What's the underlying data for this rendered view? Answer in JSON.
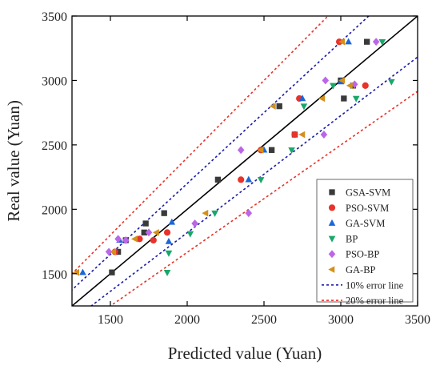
{
  "chart_data": {
    "type": "scatter",
    "title": "",
    "xlabel": "Predicted value (Yuan)",
    "ylabel": "Real value (Yuan)",
    "xlim": [
      1250,
      3500
    ],
    "ylim": [
      1250,
      3500
    ],
    "x_ticks": [
      "1500",
      "2000",
      "2500",
      "3000",
      "3500"
    ],
    "y_ticks": [
      "1500",
      "2000",
      "2500",
      "3000",
      "3500"
    ],
    "grid": false,
    "legend_position": "bottom-right",
    "reference_lines": [
      {
        "name": "",
        "kind": "y=x",
        "color": "#000000",
        "style": "solid"
      },
      {
        "name": "10% error line",
        "kind": "ratio",
        "ratios": [
          1.1,
          0.909
        ],
        "color": "#1a1aa8",
        "style": "dotted"
      },
      {
        "name": "20% error line",
        "kind": "ratio",
        "ratios": [
          1.2,
          0.833
        ],
        "color": "#e8322a",
        "style": "dotted"
      }
    ],
    "series": [
      {
        "name": "GSA-SVM",
        "marker": "square",
        "color": "#3a3a3a",
        "points": [
          [
            1510,
            1510
          ],
          [
            1550,
            1670
          ],
          [
            1600,
            1760
          ],
          [
            1720,
            1820
          ],
          [
            1730,
            1890
          ],
          [
            1850,
            1970
          ],
          [
            2200,
            2230
          ],
          [
            2550,
            2460
          ],
          [
            2600,
            2800
          ],
          [
            3020,
            2860
          ],
          [
            2700,
            2580
          ],
          [
            3000,
            3000
          ],
          [
            3080,
            2960
          ],
          [
            3170,
            3300
          ]
        ]
      },
      {
        "name": "PSO-SVM",
        "marker": "circle",
        "color": "#e8322a",
        "points": [
          [
            1530,
            1670
          ],
          [
            1690,
            1770
          ],
          [
            1780,
            1760
          ],
          [
            1870,
            1820
          ],
          [
            2350,
            2230
          ],
          [
            2480,
            2460
          ],
          [
            2700,
            2580
          ],
          [
            2730,
            2860
          ],
          [
            2990,
            3300
          ],
          [
            3160,
            2960
          ]
        ]
      },
      {
        "name": "GA-SVM",
        "marker": "triangle-up",
        "color": "#1c66d9",
        "points": [
          [
            1320,
            1510
          ],
          [
            1560,
            1760
          ],
          [
            1880,
            1750
          ],
          [
            1900,
            1900
          ],
          [
            2400,
            2230
          ],
          [
            2500,
            2460
          ],
          [
            2750,
            2860
          ],
          [
            3050,
            3300
          ],
          [
            3000,
            2990
          ]
        ]
      },
      {
        "name": "BP",
        "marker": "triangle-down",
        "color": "#17a86a",
        "points": [
          [
            1870,
            1510
          ],
          [
            1880,
            1660
          ],
          [
            2020,
            1810
          ],
          [
            2180,
            1970
          ],
          [
            2480,
            2230
          ],
          [
            2680,
            2460
          ],
          [
            2760,
            2800
          ],
          [
            3100,
            2860
          ],
          [
            3330,
            2990
          ],
          [
            3270,
            3300
          ],
          [
            2950,
            2960
          ]
        ]
      },
      {
        "name": "PSO-BP",
        "marker": "diamond",
        "color": "#bb66e8",
        "points": [
          [
            1490,
            1670
          ],
          [
            1550,
            1770
          ],
          [
            1600,
            1760
          ],
          [
            1750,
            1820
          ],
          [
            2050,
            1890
          ],
          [
            2350,
            2460
          ],
          [
            2400,
            1970
          ],
          [
            2890,
            2580
          ],
          [
            2900,
            3000
          ],
          [
            3230,
            3300
          ],
          [
            3090,
            2970
          ]
        ]
      },
      {
        "name": "GA-BP",
        "marker": "triangle-left",
        "color": "#d4901a",
        "points": [
          [
            1280,
            1510
          ],
          [
            1520,
            1670
          ],
          [
            1660,
            1770
          ],
          [
            1800,
            1820
          ],
          [
            2120,
            1970
          ],
          [
            2480,
            2460
          ],
          [
            2560,
            2800
          ],
          [
            2750,
            2580
          ],
          [
            2880,
            2860
          ],
          [
            3010,
            3300
          ],
          [
            3010,
            3000
          ],
          [
            3060,
            2960
          ]
        ]
      }
    ]
  }
}
